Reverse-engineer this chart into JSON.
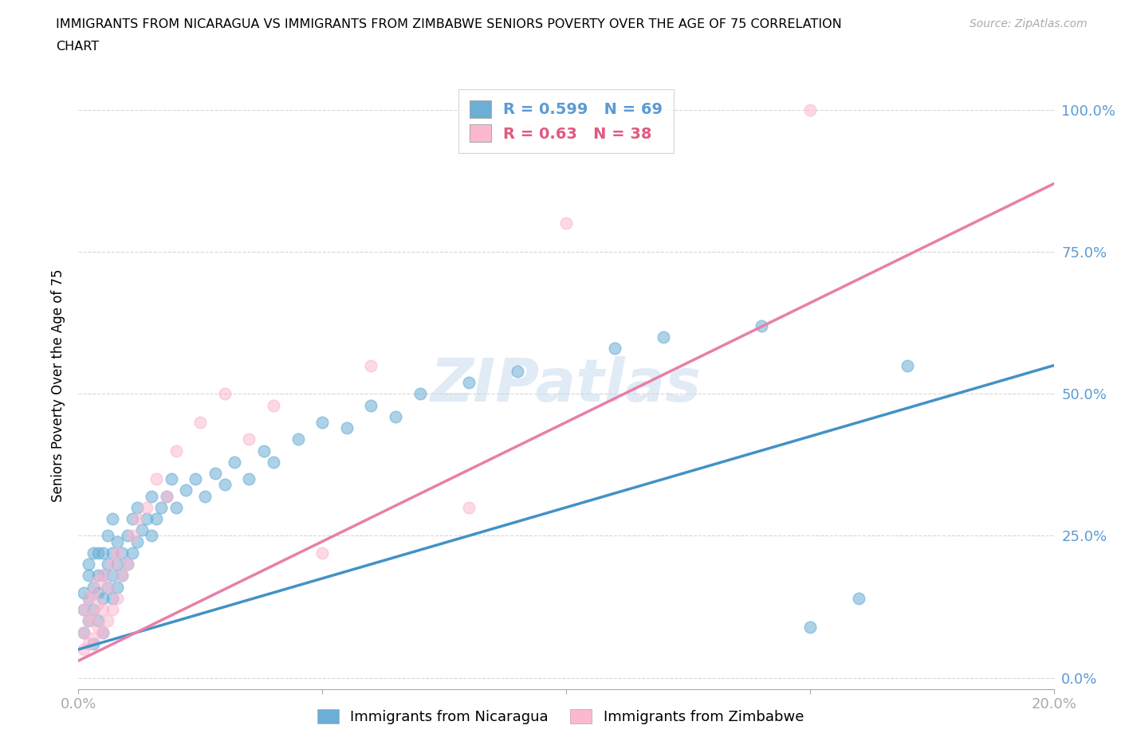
{
  "title_line1": "IMMIGRANTS FROM NICARAGUA VS IMMIGRANTS FROM ZIMBABWE SENIORS POVERTY OVER THE AGE OF 75 CORRELATION",
  "title_line2": "CHART",
  "source_text": "Source: ZipAtlas.com",
  "ylabel": "Seniors Poverty Over the Age of 75",
  "xlim": [
    0.0,
    0.2
  ],
  "ylim": [
    -0.02,
    1.05
  ],
  "yticks": [
    0.0,
    0.25,
    0.5,
    0.75,
    1.0
  ],
  "ytick_labels": [
    "0.0%",
    "25.0%",
    "50.0%",
    "75.0%",
    "100.0%"
  ],
  "xticks": [
    0.0,
    0.05,
    0.1,
    0.15,
    0.2
  ],
  "xtick_labels": [
    "0.0%",
    "",
    "",
    "",
    "20.0%"
  ],
  "nicaragua_color": "#6baed6",
  "zimbabwe_color": "#fcb8d0",
  "nicaragua_line_color": "#4292c6",
  "zimbabwe_line_color": "#e87fa8",
  "nicaragua_R": 0.599,
  "nicaragua_N": 69,
  "zimbabwe_R": 0.63,
  "zimbabwe_N": 38,
  "watermark": "ZIPatlas",
  "nicaragua_scatter_x": [
    0.001,
    0.001,
    0.001,
    0.002,
    0.002,
    0.002,
    0.002,
    0.003,
    0.003,
    0.003,
    0.003,
    0.004,
    0.004,
    0.004,
    0.004,
    0.005,
    0.005,
    0.005,
    0.005,
    0.006,
    0.006,
    0.006,
    0.007,
    0.007,
    0.007,
    0.007,
    0.008,
    0.008,
    0.008,
    0.009,
    0.009,
    0.01,
    0.01,
    0.011,
    0.011,
    0.012,
    0.012,
    0.013,
    0.014,
    0.015,
    0.015,
    0.016,
    0.017,
    0.018,
    0.019,
    0.02,
    0.022,
    0.024,
    0.026,
    0.028,
    0.03,
    0.032,
    0.035,
    0.038,
    0.04,
    0.045,
    0.05,
    0.055,
    0.06,
    0.065,
    0.07,
    0.08,
    0.09,
    0.11,
    0.12,
    0.14,
    0.15,
    0.16,
    0.17
  ],
  "nicaragua_scatter_y": [
    0.08,
    0.12,
    0.15,
    0.1,
    0.14,
    0.18,
    0.2,
    0.12,
    0.16,
    0.22,
    0.06,
    0.15,
    0.18,
    0.22,
    0.1,
    0.14,
    0.18,
    0.22,
    0.08,
    0.16,
    0.2,
    0.25,
    0.14,
    0.18,
    0.22,
    0.28,
    0.16,
    0.2,
    0.24,
    0.18,
    0.22,
    0.2,
    0.25,
    0.22,
    0.28,
    0.24,
    0.3,
    0.26,
    0.28,
    0.25,
    0.32,
    0.28,
    0.3,
    0.32,
    0.35,
    0.3,
    0.33,
    0.35,
    0.32,
    0.36,
    0.34,
    0.38,
    0.35,
    0.4,
    0.38,
    0.42,
    0.45,
    0.44,
    0.48,
    0.46,
    0.5,
    0.52,
    0.54,
    0.58,
    0.6,
    0.62,
    0.09,
    0.14,
    0.55
  ],
  "zimbabwe_scatter_x": [
    0.001,
    0.001,
    0.001,
    0.002,
    0.002,
    0.002,
    0.003,
    0.003,
    0.003,
    0.004,
    0.004,
    0.004,
    0.005,
    0.005,
    0.005,
    0.006,
    0.006,
    0.007,
    0.007,
    0.008,
    0.008,
    0.009,
    0.01,
    0.011,
    0.012,
    0.014,
    0.016,
    0.018,
    0.02,
    0.025,
    0.03,
    0.035,
    0.04,
    0.05,
    0.06,
    0.08,
    0.1,
    0.15
  ],
  "zimbabwe_scatter_y": [
    0.05,
    0.08,
    0.12,
    0.06,
    0.1,
    0.14,
    0.07,
    0.11,
    0.15,
    0.09,
    0.13,
    0.17,
    0.08,
    0.12,
    0.18,
    0.1,
    0.16,
    0.12,
    0.2,
    0.14,
    0.22,
    0.18,
    0.2,
    0.25,
    0.28,
    0.3,
    0.35,
    0.32,
    0.4,
    0.45,
    0.5,
    0.42,
    0.48,
    0.22,
    0.55,
    0.3,
    0.8,
    1.0
  ],
  "nicaragua_line_x": [
    0.0,
    0.2
  ],
  "nicaragua_line_y": [
    0.05,
    0.55
  ],
  "zimbabwe_line_x": [
    0.0,
    0.2
  ],
  "zimbabwe_line_y": [
    0.03,
    0.87
  ]
}
